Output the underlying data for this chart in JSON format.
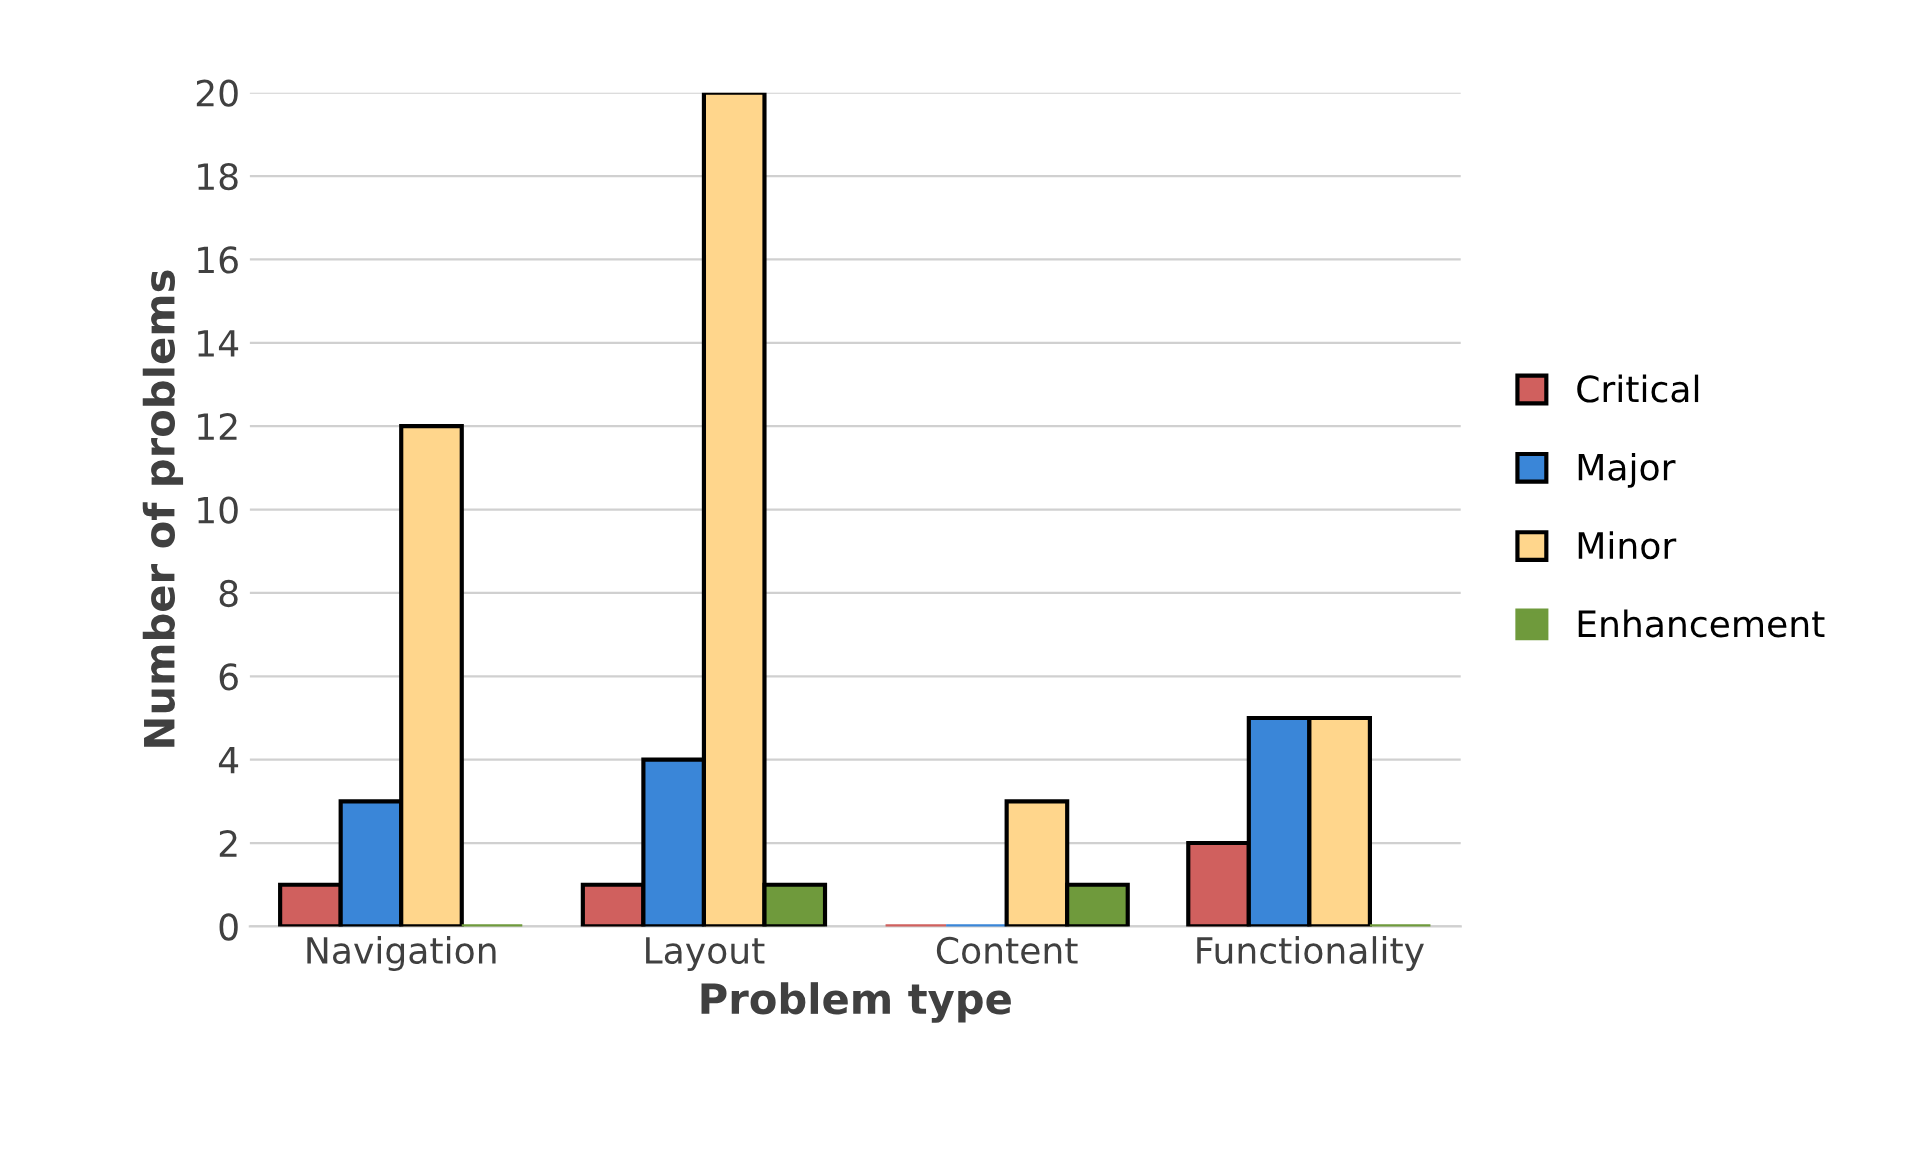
{
  "chart_data": {
    "type": "bar",
    "xlabel": "Problem type",
    "ylabel": "Number of problems",
    "categories": [
      "Navigation",
      "Layout",
      "Content",
      "Functionality"
    ],
    "series": [
      {
        "name": "Critical",
        "color": "#d0605e",
        "values": [
          1,
          1,
          0,
          2
        ]
      },
      {
        "name": "Major",
        "color": "#3a86d8",
        "values": [
          3,
          4,
          0,
          5
        ]
      },
      {
        "name": "Minor",
        "color": "#ffd68c",
        "values": [
          12,
          20,
          3,
          5
        ]
      },
      {
        "name": "Enhancement",
        "color": "#6f9a3c",
        "values": [
          0,
          1,
          1,
          0
        ]
      }
    ],
    "ylim": [
      0,
      20
    ],
    "yticks": [
      0,
      2,
      4,
      6,
      8,
      10,
      12,
      14,
      16,
      18,
      20
    ],
    "grid": "y",
    "legend": "right"
  }
}
